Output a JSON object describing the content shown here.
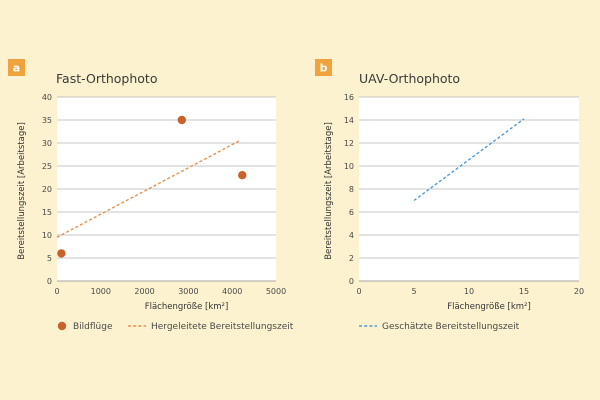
{
  "colors": {
    "background": "#fcf2cf",
    "plot_background": "#ffffff",
    "badge": "#f0a33c",
    "marker": "#c8612a",
    "derived_line": "#e39252",
    "estimated_line": "#4f9bd6",
    "grid": "#b4b4b4"
  },
  "chart_data": [
    {
      "panel": "a",
      "type": "scatter",
      "title": "Fast-Orthophoto",
      "xlabel": "Flächengröße [km²]",
      "ylabel": "Bereitstellungszeit [Arbeitstage]",
      "xlim": [
        0,
        5000
      ],
      "ylim": [
        0,
        40
      ],
      "xticks": [
        "0",
        "1000",
        "2000",
        "3000",
        "4000",
        "5000"
      ],
      "yticks": [
        "0",
        "5",
        "10",
        "15",
        "20",
        "25",
        "30",
        "35",
        "40"
      ],
      "grid": "horizontal",
      "series": [
        {
          "name": "Bildflüge",
          "kind": "points",
          "color": "#c8612a",
          "points": [
            [
              100,
              6
            ],
            [
              2850,
              35
            ],
            [
              4230,
              23
            ]
          ]
        },
        {
          "name": "Hergeleitete Bereitstellungszeit",
          "kind": "dashed-line",
          "color": "#e39252",
          "points": [
            [
              0,
              9.5
            ],
            [
              4150,
              30.4
            ]
          ]
        }
      ]
    },
    {
      "panel": "b",
      "type": "line",
      "title": "UAV-Orthophoto",
      "xlabel": "Flächengröße [km²]",
      "ylabel": "Bereitstellungszeit [Arbeitstage]",
      "xlim": [
        0,
        20
      ],
      "ylim": [
        0,
        16
      ],
      "xticks": [
        "0",
        "5",
        "10",
        "15",
        "20"
      ],
      "yticks": [
        "0",
        "2",
        "4",
        "6",
        "8",
        "10",
        "12",
        "14",
        "16"
      ],
      "grid": "horizontal",
      "series": [
        {
          "name": "Geschätzte Bereitstellungszeit",
          "kind": "dashed-line",
          "color": "#4f9bd6",
          "points": [
            [
              5,
              7
            ],
            [
              15,
              14.1
            ]
          ]
        }
      ]
    }
  ]
}
